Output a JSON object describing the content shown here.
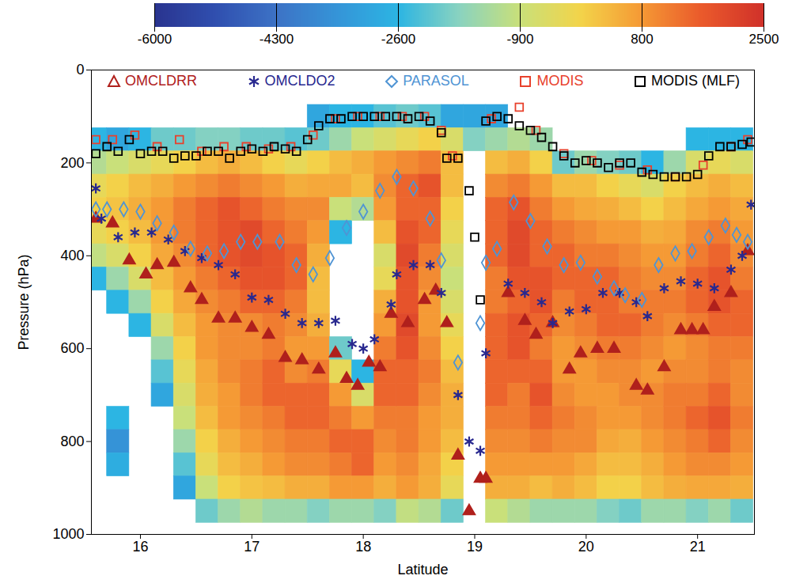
{
  "chart_data": {
    "type": "heatmap",
    "xlabel": "Latitude",
    "ylabel": "Pressure (hPa)",
    "xlim": [
      15.56,
      21.51
    ],
    "xticks": [
      16,
      17,
      18,
      19,
      20,
      21
    ],
    "ylim": [
      1000,
      0
    ],
    "yticks": [
      0,
      200,
      400,
      600,
      800,
      1000
    ],
    "grid": false,
    "legend": "top",
    "colorbar": {
      "range": [
        -6000,
        2500
      ],
      "ticks": [
        -6000,
        -4300,
        -2600,
        -900,
        800,
        2500
      ]
    },
    "curtain": {
      "latitude": [
        15.6,
        15.8,
        16.0,
        16.2,
        16.4,
        16.6,
        16.8,
        17.0,
        17.2,
        17.4,
        17.6,
        17.8,
        18.0,
        18.2,
        18.4,
        18.6,
        18.8,
        19.0,
        19.2,
        19.4,
        19.6,
        19.8,
        20.0,
        20.2,
        20.4,
        20.6,
        20.8,
        21.0,
        21.2,
        21.4
      ],
      "pressure": [
        100,
        150,
        200,
        250,
        300,
        350,
        400,
        450,
        500,
        550,
        600,
        650,
        700,
        750,
        800,
        850,
        900,
        950
      ],
      "values": [
        [
          null,
          -2600,
          -1200,
          -300,
          0,
          -300,
          -1000,
          -2600,
          null,
          null,
          null,
          null,
          null,
          null,
          null,
          null,
          null,
          null
        ],
        [
          null,
          -3000,
          -900,
          0,
          200,
          0,
          -600,
          -1500,
          -2600,
          null,
          null,
          null,
          null,
          -2600,
          -3500,
          -2800,
          null,
          null
        ],
        [
          null,
          -2600,
          -600,
          300,
          500,
          300,
          0,
          -600,
          -1500,
          -2600,
          null,
          null,
          null,
          null,
          null,
          null,
          null,
          null
        ],
        [
          null,
          -2000,
          -300,
          500,
          800,
          800,
          600,
          300,
          0,
          -600,
          -1500,
          -2200,
          -3000,
          null,
          null,
          null,
          null,
          null
        ],
        [
          null,
          -2000,
          0,
          800,
          1200,
          1200,
          1000,
          800,
          600,
          300,
          0,
          -300,
          -600,
          -900,
          -1500,
          -2200,
          -3000,
          null
        ],
        [
          null,
          -1800,
          300,
          1000,
          1500,
          1500,
          1500,
          1200,
          1000,
          800,
          800,
          600,
          500,
          300,
          0,
          -300,
          -900,
          -2000
        ],
        [
          null,
          -1800,
          500,
          1200,
          1800,
          1800,
          1800,
          1500,
          1200,
          1000,
          1000,
          1000,
          800,
          800,
          500,
          300,
          0,
          -1500
        ],
        [
          null,
          -2000,
          300,
          1000,
          1500,
          2000,
          2000,
          1800,
          1500,
          1000,
          1000,
          1200,
          1200,
          1000,
          800,
          500,
          200,
          -1200
        ],
        [
          null,
          -2000,
          0,
          800,
          1200,
          1500,
          1800,
          1800,
          1500,
          1200,
          1200,
          1500,
          1500,
          1200,
          1000,
          800,
          300,
          -1500
        ],
        [
          null,
          -2200,
          -300,
          500,
          1000,
          1200,
          1500,
          1500,
          1200,
          1000,
          800,
          1000,
          1500,
          1500,
          1200,
          1000,
          500,
          -1500
        ],
        [
          -3000,
          -2000,
          0,
          600,
          1000,
          800,
          500,
          300,
          300,
          500,
          800,
          1200,
          1500,
          1500,
          1200,
          1000,
          500,
          -1800
        ],
        [
          -2600,
          -1500,
          300,
          600,
          -900,
          -2600,
          null,
          null,
          null,
          null,
          -2000,
          -300,
          800,
          1200,
          1500,
          1200,
          800,
          -1500
        ],
        [
          -2600,
          -900,
          500,
          300,
          -1200,
          null,
          null,
          null,
          null,
          null,
          null,
          -2600,
          -600,
          800,
          1500,
          1500,
          800,
          -1500
        ],
        [
          -2200,
          -600,
          800,
          1000,
          800,
          300,
          -600,
          -300,
          500,
          800,
          1200,
          1500,
          1500,
          1200,
          1000,
          800,
          500,
          -1800
        ],
        [
          -2000,
          -300,
          1000,
          1500,
          1500,
          1800,
          2000,
          1800,
          1800,
          2000,
          1800,
          1500,
          1500,
          1200,
          1200,
          1000,
          800,
          -1000
        ],
        [
          -2200,
          0,
          1200,
          1800,
          1500,
          1500,
          1200,
          1000,
          800,
          800,
          1000,
          1200,
          1000,
          800,
          800,
          600,
          500,
          -1200
        ],
        [
          -3000,
          -600,
          300,
          300,
          0,
          -300,
          -600,
          -900,
          -600,
          -300,
          0,
          300,
          500,
          500,
          300,
          0,
          -300,
          -2000
        ],
        [
          -3000,
          -1800,
          null,
          null,
          null,
          null,
          null,
          null,
          null,
          null,
          null,
          null,
          null,
          null,
          null,
          null,
          null,
          null
        ],
        [
          -3000,
          -1500,
          300,
          1000,
          1500,
          1500,
          1500,
          1200,
          1200,
          1500,
          1500,
          1500,
          1500,
          1200,
          1000,
          800,
          500,
          -900
        ],
        [
          null,
          -1200,
          500,
          1200,
          1800,
          2000,
          2000,
          1800,
          1500,
          1800,
          1800,
          1500,
          1200,
          1200,
          1000,
          800,
          500,
          -1200
        ],
        [
          null,
          -1500,
          0,
          800,
          1200,
          1500,
          1500,
          1800,
          1800,
          1500,
          1200,
          1500,
          1800,
          1500,
          1200,
          800,
          300,
          -1500
        ],
        [
          null,
          null,
          -2000,
          300,
          800,
          1200,
          1500,
          1500,
          1200,
          1000,
          800,
          800,
          1000,
          1200,
          1000,
          800,
          500,
          -1500
        ],
        [
          null,
          null,
          -1500,
          300,
          600,
          1000,
          1200,
          1500,
          1500,
          1200,
          1000,
          800,
          800,
          1000,
          1000,
          600,
          300,
          -1500
        ],
        [
          null,
          null,
          -1800,
          0,
          500,
          800,
          1200,
          1500,
          1500,
          1500,
          1200,
          1000,
          800,
          800,
          600,
          300,
          0,
          -1800
        ],
        [
          null,
          null,
          -2000,
          -300,
          300,
          800,
          1000,
          1200,
          1200,
          1500,
          1200,
          1000,
          1000,
          800,
          500,
          300,
          0,
          -2000
        ],
        [
          null,
          null,
          -2600,
          -600,
          0,
          500,
          800,
          1000,
          1200,
          1200,
          1000,
          800,
          1000,
          1000,
          800,
          500,
          300,
          -1500
        ],
        [
          null,
          null,
          -1500,
          0,
          300,
          600,
          800,
          1000,
          1200,
          1000,
          800,
          1000,
          1200,
          1200,
          1000,
          800,
          500,
          -1500
        ],
        [
          null,
          -2600,
          -600,
          300,
          600,
          1000,
          1200,
          1500,
          1500,
          1200,
          1000,
          1000,
          1200,
          1500,
          1200,
          1000,
          600,
          -1800
        ],
        [
          null,
          -2600,
          -300,
          500,
          800,
          1200,
          1500,
          1800,
          1800,
          1500,
          1200,
          1200,
          1500,
          1800,
          1500,
          1000,
          600,
          -1500
        ],
        [
          null,
          -2600,
          -600,
          300,
          600,
          800,
          1000,
          1200,
          1500,
          1500,
          1200,
          1000,
          1000,
          1200,
          1000,
          800,
          500,
          -2000
        ]
      ]
    },
    "series": [
      {
        "name": "OMCLDRR",
        "color": "#b0201c",
        "marker": "triangle",
        "x": [
          15.6,
          15.75,
          15.9,
          16.05,
          16.15,
          16.3,
          16.45,
          16.55,
          16.7,
          16.85,
          17.0,
          17.15,
          17.3,
          17.45,
          17.6,
          17.75,
          17.85,
          17.95,
          18.05,
          18.15,
          18.25,
          18.4,
          18.55,
          18.65,
          18.75,
          18.85,
          18.95,
          19.05,
          19.1,
          19.3,
          19.45,
          19.55,
          19.7,
          19.85,
          19.95,
          20.1,
          20.25,
          20.45,
          20.55,
          20.7,
          20.85,
          20.95,
          21.05,
          21.15,
          21.3,
          21.45
        ],
        "values": [
          320,
          330,
          410,
          440,
          420,
          415,
          470,
          495,
          535,
          535,
          555,
          570,
          620,
          625,
          645,
          610,
          665,
          680,
          630,
          640,
          525,
          545,
          495,
          475,
          545,
          830,
          950,
          880,
          880,
          480,
          540,
          570,
          545,
          645,
          610,
          600,
          600,
          680,
          690,
          640,
          560,
          560,
          560,
          510,
          480,
          390
        ]
      },
      {
        "name": "OMCLDO2",
        "color": "#28288f",
        "marker": "asterisk",
        "x": [
          15.6,
          15.65,
          15.8,
          15.95,
          16.1,
          16.25,
          16.4,
          16.55,
          16.7,
          16.85,
          17.0,
          17.15,
          17.3,
          17.45,
          17.6,
          17.75,
          17.9,
          18.0,
          18.1,
          18.25,
          18.3,
          18.45,
          18.6,
          18.7,
          18.85,
          18.95,
          19.05,
          19.1,
          19.3,
          19.45,
          19.6,
          19.7,
          19.85,
          20.0,
          20.15,
          20.3,
          20.45,
          20.55,
          20.7,
          20.85,
          21.0,
          21.15,
          21.3,
          21.4,
          21.48
        ],
        "values": [
          255,
          320,
          360,
          350,
          350,
          365,
          390,
          405,
          420,
          440,
          490,
          495,
          525,
          545,
          545,
          540,
          590,
          600,
          580,
          505,
          440,
          420,
          420,
          480,
          700,
          800,
          820,
          610,
          460,
          480,
          500,
          545,
          520,
          515,
          480,
          480,
          500,
          530,
          470,
          455,
          460,
          470,
          430,
          400,
          290
        ]
      },
      {
        "name": "PARASOL",
        "color": "#4f94d4",
        "marker": "diamond",
        "x": [
          15.6,
          15.7,
          15.85,
          16.0,
          16.15,
          16.3,
          16.45,
          16.6,
          16.75,
          16.9,
          17.05,
          17.25,
          17.4,
          17.55,
          17.7,
          17.85,
          18.0,
          18.15,
          18.3,
          18.45,
          18.6,
          18.7,
          18.85,
          19.05,
          19.1,
          19.2,
          19.35,
          19.5,
          19.65,
          19.8,
          19.95,
          20.1,
          20.25,
          20.35,
          20.5,
          20.65,
          20.8,
          20.95,
          21.1,
          21.25,
          21.35,
          21.45
        ],
        "values": [
          300,
          300,
          300,
          305,
          330,
          350,
          385,
          395,
          390,
          370,
          370,
          370,
          420,
          440,
          405,
          340,
          305,
          260,
          230,
          255,
          320,
          410,
          630,
          545,
          415,
          385,
          285,
          325,
          380,
          420,
          415,
          445,
          470,
          485,
          495,
          420,
          395,
          390,
          360,
          335,
          355,
          370
        ]
      },
      {
        "name": "MODIS",
        "color": "#e8412c",
        "marker": "square",
        "x": [
          15.6,
          15.75,
          15.95,
          16.15,
          16.35,
          16.55,
          16.75,
          16.95,
          17.15,
          17.35,
          17.55,
          17.75,
          17.95,
          18.15,
          18.35,
          18.55,
          18.7,
          18.8,
          19.15,
          19.4,
          19.55,
          19.8,
          20.05,
          20.3,
          20.55,
          20.8,
          21.05,
          21.3,
          21.45
        ],
        "values": [
          150,
          150,
          140,
          165,
          150,
          175,
          165,
          165,
          170,
          165,
          140,
          105,
          100,
          100,
          100,
          100,
          130,
          185,
          105,
          80,
          130,
          180,
          195,
          205,
          215,
          230,
          205,
          165,
          150
        ]
      },
      {
        "name": "MODIS (MLF)",
        "color": "#000000",
        "marker": "square",
        "x": [
          15.6,
          15.7,
          15.8,
          15.9,
          16.0,
          16.1,
          16.2,
          16.3,
          16.4,
          16.5,
          16.6,
          16.7,
          16.8,
          16.9,
          17.0,
          17.1,
          17.2,
          17.3,
          17.4,
          17.5,
          17.6,
          17.7,
          17.8,
          17.9,
          18.0,
          18.1,
          18.2,
          18.3,
          18.4,
          18.5,
          18.6,
          18.7,
          18.75,
          18.85,
          18.95,
          19.0,
          19.05,
          19.1,
          19.2,
          19.3,
          19.4,
          19.5,
          19.6,
          19.7,
          19.8,
          19.9,
          20.0,
          20.1,
          20.2,
          20.3,
          20.4,
          20.5,
          20.6,
          20.7,
          20.8,
          20.9,
          21.0,
          21.1,
          21.2,
          21.3,
          21.4,
          21.48
        ],
        "values": [
          180,
          165,
          175,
          150,
          180,
          175,
          175,
          190,
          185,
          185,
          175,
          175,
          190,
          175,
          170,
          175,
          165,
          170,
          175,
          150,
          120,
          105,
          105,
          100,
          100,
          100,
          100,
          100,
          105,
          100,
          110,
          135,
          190,
          190,
          260,
          360,
          495,
          110,
          100,
          105,
          120,
          130,
          145,
          165,
          185,
          200,
          195,
          200,
          210,
          200,
          200,
          220,
          225,
          230,
          230,
          230,
          225,
          185,
          165,
          165,
          160,
          155
        ]
      }
    ]
  }
}
